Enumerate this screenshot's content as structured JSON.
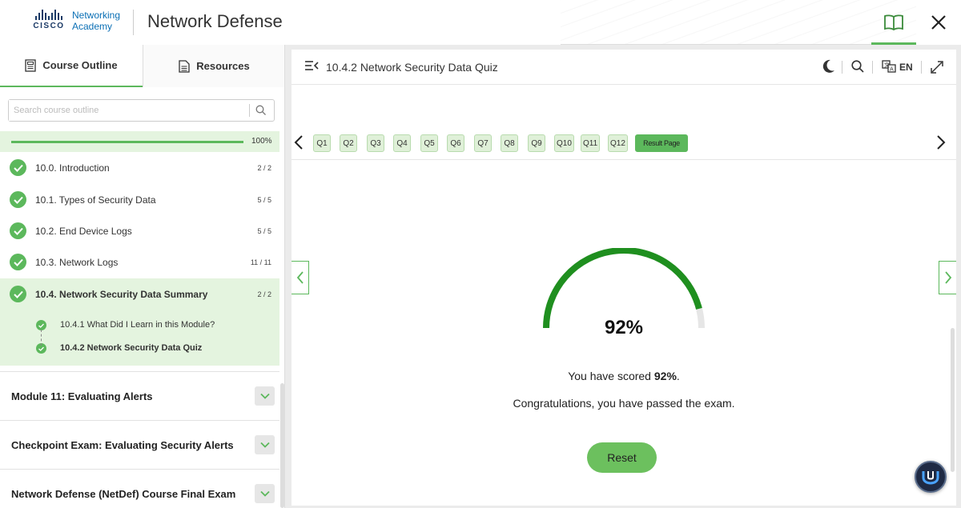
{
  "header": {
    "brand_line1": "Networking",
    "brand_line2": "Academy",
    "brand_cisco": "CISCO",
    "title": "Network Defense"
  },
  "sidebar": {
    "tabs": [
      {
        "label": "Course Outline",
        "icon": "outline-icon",
        "active": true
      },
      {
        "label": "Resources",
        "icon": "document-icon",
        "active": false
      }
    ],
    "search_placeholder": "Search course outline",
    "progress_label": "100%",
    "progress_value": 100,
    "topics": [
      {
        "label": "10.0. Introduction",
        "count": "2 / 2"
      },
      {
        "label": "10.1. Types of Security Data",
        "count": "5 / 5"
      },
      {
        "label": "10.2. End Device Logs",
        "count": "5 / 5"
      },
      {
        "label": "10.3. Network Logs",
        "count": "11 / 11"
      },
      {
        "label": "10.4. Network Security Data Summary",
        "count": "2 / 2"
      }
    ],
    "subtopics": [
      {
        "label": "10.4.1 What Did I Learn in this Module?"
      },
      {
        "label": "10.4.2 Network Security Data Quiz"
      }
    ],
    "modules": [
      {
        "label": "Module 11: Evaluating Alerts"
      },
      {
        "label": "Checkpoint Exam: Evaluating Security Alerts"
      },
      {
        "label": "Network Defense (NetDef) Course Final Exam"
      }
    ]
  },
  "main": {
    "title": "10.4.2 Network Security Data Quiz",
    "language": "EN",
    "questions": [
      "Q1",
      "Q2",
      "Q3",
      "Q4",
      "Q5",
      "Q6",
      "Q7",
      "Q8",
      "Q9",
      "Q10",
      "Q11",
      "Q12"
    ],
    "result_label": "Result Page",
    "score_label": "92%",
    "score_value": 92,
    "score_prefix": "You have scored ",
    "score_bold": "92%",
    "score_suffix": ".",
    "congrats": "Congratulations, you have passed the exam.",
    "reset_label": "Reset"
  },
  "colors": {
    "accent": "#5cb85c",
    "gauge": "#1f8f1f",
    "light_green": "#e4f4df"
  }
}
